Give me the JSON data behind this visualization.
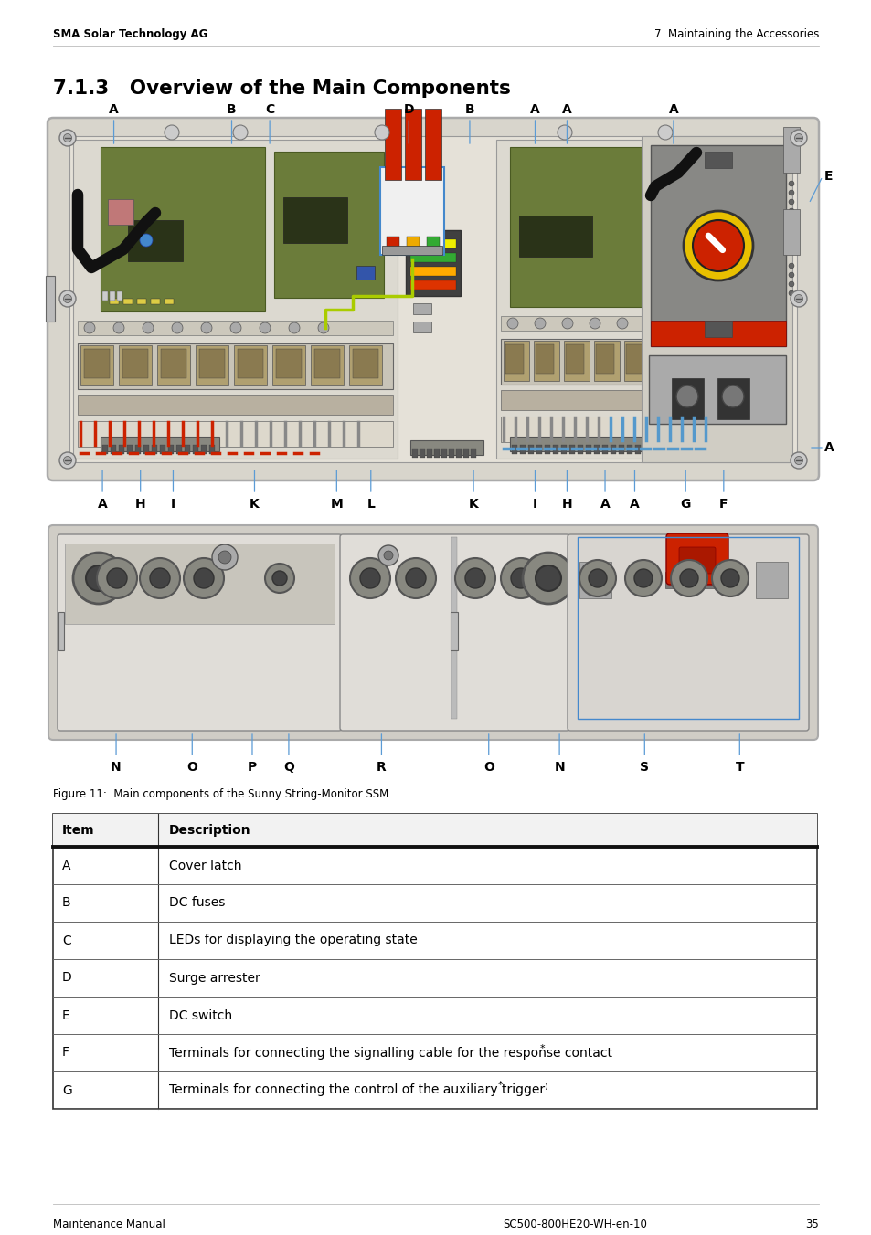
{
  "header_left": "SMA Solar Technology AG",
  "header_right": "7  Maintaining the Accessories",
  "footer_left": "Maintenance Manual",
  "footer_right": "SC500-800HE20-WH-en-10",
  "footer_page": "35",
  "section_title": "7.1.3   Overview of the Main Components",
  "figure_caption": "Figure 11:  Main components of the Sunny String-Monitor SSM",
  "bg_color": "#ffffff",
  "line_color": "#5b9bd5",
  "table_items": [
    [
      "A",
      "Cover latch"
    ],
    [
      "B",
      "DC fuses"
    ],
    [
      "C",
      "LEDs for displaying the operating state"
    ],
    [
      "D",
      "Surge arrester"
    ],
    [
      "E",
      "DC switch"
    ],
    [
      "F",
      "Terminals for connecting the signalling cable for the response contact*"
    ],
    [
      "G",
      "Terminals for connecting the control of the auxiliary trigger⁾"
    ]
  ],
  "top_labels": [
    [
      "A",
      0.08
    ],
    [
      "B",
      0.235
    ],
    [
      "C",
      0.285
    ],
    [
      "D",
      0.468
    ],
    [
      "B",
      0.548
    ],
    [
      "A",
      0.634
    ],
    [
      "A",
      0.676
    ],
    [
      "A",
      0.816
    ]
  ],
  "bottom_labels": [
    [
      "A",
      0.065
    ],
    [
      "H",
      0.115
    ],
    [
      "I",
      0.158
    ],
    [
      "K",
      0.265
    ],
    [
      "M",
      0.373
    ],
    [
      "L",
      0.418
    ],
    [
      "K",
      0.553
    ],
    [
      "I",
      0.634
    ],
    [
      "H",
      0.676
    ],
    [
      "A",
      0.726
    ],
    [
      "A",
      0.765
    ],
    [
      "G",
      0.832
    ],
    [
      "F",
      0.882
    ]
  ],
  "second_labels": [
    [
      "N",
      0.083
    ],
    [
      "O",
      0.183
    ],
    [
      "P",
      0.262
    ],
    [
      "Q",
      0.31
    ],
    [
      "R",
      0.432
    ],
    [
      "O",
      0.573
    ],
    [
      "N",
      0.666
    ],
    [
      "S",
      0.778
    ],
    [
      "T",
      0.903
    ]
  ]
}
